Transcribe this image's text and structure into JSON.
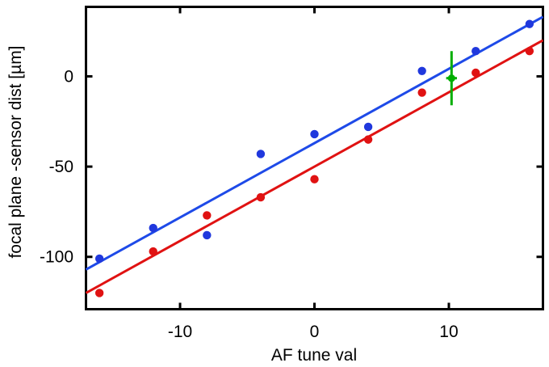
{
  "chart_data": {
    "type": "scatter",
    "title": "",
    "xlabel": "AF tune val",
    "ylabel": "focal plane -sensor dist [µm]",
    "xlim": [
      -17,
      17
    ],
    "ylim": [
      -129,
      38.5
    ],
    "x_ticks": [
      -10,
      0,
      10
    ],
    "y_ticks": [
      0,
      -50,
      -100
    ],
    "grid": false,
    "legend": "none",
    "border_color": "#000000",
    "series": [
      {
        "name": "blue-fit-line",
        "type": "line",
        "color": "#1e4ae8",
        "x1": -17,
        "y1": -107,
        "x2": 17,
        "y2": 33
      },
      {
        "name": "red-fit-line",
        "type": "line",
        "color": "#e01212",
        "x1": -17,
        "y1": -120,
        "x2": 17,
        "y2": 20
      },
      {
        "name": "blue-points",
        "type": "scatter",
        "color": "#2038dd",
        "x": [
          -16,
          -12,
          -8,
          -4,
          0,
          4,
          8,
          12,
          16
        ],
        "y": [
          -101,
          -84,
          -88,
          -43,
          -32,
          -28,
          3,
          14,
          29
        ]
      },
      {
        "name": "red-points",
        "type": "scatter",
        "color": "#e01212",
        "x": [
          -16,
          -12,
          -8,
          -4,
          0,
          4,
          8,
          12,
          16
        ],
        "y": [
          -120,
          -97,
          -77,
          -67,
          -57,
          -35,
          -9,
          2,
          14
        ]
      },
      {
        "name": "green-point-with-error",
        "type": "point-with-error",
        "color": "#00ae00",
        "x": 10.2,
        "y": -1,
        "yerr": 15,
        "xerr": 0.4
      }
    ]
  }
}
